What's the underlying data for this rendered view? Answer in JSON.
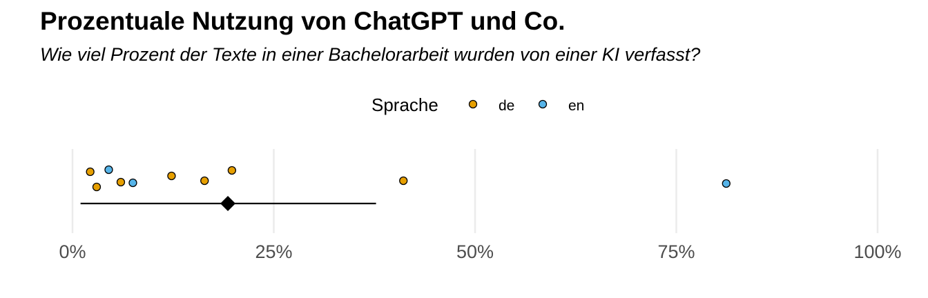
{
  "chart_data": {
    "type": "scatter",
    "title": "Prozentuale Nutzung von ChatGPT und Co.",
    "subtitle": "Wie viel Prozent der Texte in einer Bachelorarbeit wurden von einer KI verfasst?",
    "xlim": [
      0,
      100
    ],
    "x_ticks": [
      0,
      25,
      50,
      75,
      100
    ],
    "x_tick_labels": [
      "0%",
      "25%",
      "50%",
      "75%",
      "100%"
    ],
    "grid": "vertical major",
    "legend": {
      "title": "Sprache",
      "position": "top",
      "entries": [
        {
          "label": "de",
          "color": "#E69F00"
        },
        {
          "label": "en",
          "color": "#56B4E9"
        }
      ]
    },
    "series": [
      {
        "name": "de",
        "color": "#E69F00",
        "values": [
          2.2,
          3.0,
          6.0,
          12.3,
          16.4,
          19.8,
          41.1
        ]
      },
      {
        "name": "en",
        "color": "#56B4E9",
        "values": [
          4.5,
          7.5,
          81.2
        ]
      }
    ],
    "summary": {
      "mean": 19.3,
      "interval": [
        1.0,
        37.7
      ],
      "marker": "diamond",
      "color": "#000000"
    }
  }
}
